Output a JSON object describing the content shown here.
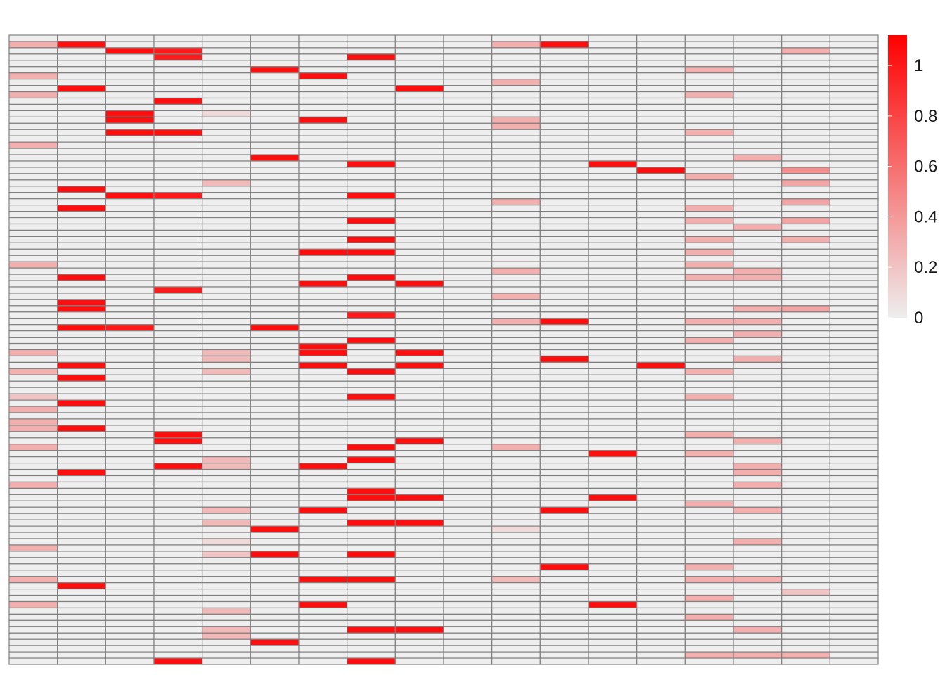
{
  "chart_data": {
    "type": "heatmap",
    "n_cols": 18,
    "n_rows": 100,
    "value_range": [
      0,
      1.12
    ],
    "default_value": 0,
    "color_low": "#eeeeee",
    "color_high": "#ff0000",
    "cell_border_color": "#808080",
    "legend": {
      "position": "right",
      "ticks": [
        {
          "value": 0,
          "label": "0"
        },
        {
          "value": 0.2,
          "label": "0.2"
        },
        {
          "value": 0.4,
          "label": "0.4"
        },
        {
          "value": 0.6,
          "label": "0.6"
        },
        {
          "value": 0.8,
          "label": "0.8"
        },
        {
          "value": 1,
          "label": "1"
        }
      ]
    },
    "cells": [
      [
        1,
        0,
        0.3
      ],
      [
        6,
        0,
        0.3
      ],
      [
        9,
        0,
        0.3
      ],
      [
        17,
        0,
        0.3
      ],
      [
        59,
        0,
        0.3
      ],
      [
        61,
        0,
        0.3
      ],
      [
        62,
        0,
        0.3
      ],
      [
        65,
        0,
        0.3
      ],
      [
        71,
        0,
        0.3
      ],
      [
        81,
        0,
        0.3
      ],
      [
        86,
        0,
        0.3
      ],
      [
        90,
        0,
        0.3
      ],
      [
        36,
        0,
        0.3
      ],
      [
        50,
        0,
        0.3
      ],
      [
        53,
        0,
        0.3
      ],
      [
        57,
        0,
        0.2
      ],
      [
        1,
        1,
        1.05
      ],
      [
        8,
        1,
        1.05
      ],
      [
        24,
        1,
        1.05
      ],
      [
        27,
        1,
        1.05
      ],
      [
        38,
        1,
        1.05
      ],
      [
        42,
        1,
        1.05
      ],
      [
        43,
        1,
        1.05
      ],
      [
        46,
        1,
        1.05
      ],
      [
        52,
        1,
        1.05
      ],
      [
        54,
        1,
        1.05
      ],
      [
        58,
        1,
        1.05
      ],
      [
        62,
        1,
        1.05
      ],
      [
        69,
        1,
        1.05
      ],
      [
        87,
        1,
        1.05
      ],
      [
        2,
        2,
        1.05
      ],
      [
        12,
        2,
        1.05
      ],
      [
        13,
        2,
        1.05
      ],
      [
        15,
        2,
        1.05
      ],
      [
        25,
        2,
        1.05
      ],
      [
        46,
        2,
        1.0
      ],
      [
        2,
        3,
        1.0
      ],
      [
        3,
        3,
        1.0
      ],
      [
        10,
        3,
        1.05
      ],
      [
        15,
        3,
        1.05
      ],
      [
        25,
        3,
        1.0
      ],
      [
        40,
        3,
        1.0
      ],
      [
        63,
        3,
        1.05
      ],
      [
        64,
        3,
        1.05
      ],
      [
        68,
        3,
        1.05
      ],
      [
        99,
        3,
        1.05
      ],
      [
        12,
        4,
        0.1
      ],
      [
        23,
        4,
        0.25
      ],
      [
        50,
        4,
        0.25
      ],
      [
        51,
        4,
        0.25
      ],
      [
        53,
        4,
        0.25
      ],
      [
        67,
        4,
        0.25
      ],
      [
        68,
        4,
        0.25
      ],
      [
        75,
        4,
        0.25
      ],
      [
        77,
        4,
        0.25
      ],
      [
        80,
        4,
        0.1
      ],
      [
        82,
        4,
        0.2
      ],
      [
        91,
        4,
        0.25
      ],
      [
        94,
        4,
        0.25
      ],
      [
        95,
        4,
        0.25
      ],
      [
        5,
        5,
        1.05
      ],
      [
        19,
        5,
        1.05
      ],
      [
        46,
        5,
        1.05
      ],
      [
        78,
        5,
        1.05
      ],
      [
        82,
        5,
        1.05
      ],
      [
        96,
        5,
        1.05
      ],
      [
        6,
        6,
        1.05
      ],
      [
        13,
        6,
        1.05
      ],
      [
        34,
        6,
        1.05
      ],
      [
        39,
        6,
        1.05
      ],
      [
        49,
        6,
        1.05
      ],
      [
        50,
        6,
        1.05
      ],
      [
        52,
        6,
        1.05
      ],
      [
        68,
        6,
        1.05
      ],
      [
        75,
        6,
        1.05
      ],
      [
        86,
        6,
        1.05
      ],
      [
        90,
        6,
        1.05
      ],
      [
        3,
        7,
        1.05
      ],
      [
        20,
        7,
        1.05
      ],
      [
        25,
        7,
        1.05
      ],
      [
        29,
        7,
        1.05
      ],
      [
        32,
        7,
        1.05
      ],
      [
        34,
        7,
        1.05
      ],
      [
        38,
        7,
        1.05
      ],
      [
        44,
        7,
        1.0
      ],
      [
        48,
        7,
        1.05
      ],
      [
        53,
        7,
        1.05
      ],
      [
        57,
        7,
        1.05
      ],
      [
        65,
        7,
        1.05
      ],
      [
        67,
        7,
        1.05
      ],
      [
        72,
        7,
        1.05
      ],
      [
        73,
        7,
        1.05
      ],
      [
        77,
        7,
        1.05
      ],
      [
        82,
        7,
        1.05
      ],
      [
        86,
        7,
        1.05
      ],
      [
        94,
        7,
        1.05
      ],
      [
        99,
        7,
        1.05
      ],
      [
        8,
        8,
        1.05
      ],
      [
        39,
        8,
        1.05
      ],
      [
        50,
        8,
        1.05
      ],
      [
        52,
        8,
        1.05
      ],
      [
        64,
        8,
        1.05
      ],
      [
        73,
        8,
        1.05
      ],
      [
        77,
        8,
        1.05
      ],
      [
        94,
        8,
        1.05
      ],
      [
        1,
        10,
        0.3
      ],
      [
        7,
        10,
        0.3
      ],
      [
        13,
        10,
        0.3
      ],
      [
        14,
        10,
        0.3
      ],
      [
        26,
        10,
        0.3
      ],
      [
        37,
        10,
        0.3
      ],
      [
        41,
        10,
        0.3
      ],
      [
        45,
        10,
        0.3
      ],
      [
        65,
        10,
        0.3
      ],
      [
        78,
        10,
        0.1
      ],
      [
        86,
        10,
        0.25
      ],
      [
        1,
        11,
        1.05
      ],
      [
        45,
        11,
        1.05
      ],
      [
        51,
        11,
        1.05
      ],
      [
        75,
        11,
        1.05
      ],
      [
        84,
        11,
        1.05
      ],
      [
        20,
        12,
        1.05
      ],
      [
        66,
        12,
        1.05
      ],
      [
        73,
        12,
        1.05
      ],
      [
        90,
        12,
        1.05
      ],
      [
        21,
        13,
        1.05
      ],
      [
        52,
        13,
        1.05
      ],
      [
        5,
        14,
        0.3
      ],
      [
        9,
        14,
        0.3
      ],
      [
        15,
        14,
        0.3
      ],
      [
        22,
        14,
        0.3
      ],
      [
        27,
        14,
        0.3
      ],
      [
        29,
        14,
        0.3
      ],
      [
        32,
        14,
        0.3
      ],
      [
        34,
        14,
        0.3
      ],
      [
        36,
        14,
        0.3
      ],
      [
        38,
        14,
        0.3
      ],
      [
        45,
        14,
        0.3
      ],
      [
        48,
        14,
        0.3
      ],
      [
        53,
        14,
        0.3
      ],
      [
        57,
        14,
        0.3
      ],
      [
        63,
        14,
        0.3
      ],
      [
        66,
        14,
        0.3
      ],
      [
        74,
        14,
        0.3
      ],
      [
        84,
        14,
        0.3
      ],
      [
        86,
        14,
        0.3
      ],
      [
        89,
        14,
        0.3
      ],
      [
        92,
        14,
        0.3
      ],
      [
        98,
        14,
        0.3
      ],
      [
        19,
        15,
        0.3
      ],
      [
        30,
        15,
        0.3
      ],
      [
        37,
        15,
        0.3
      ],
      [
        38,
        15,
        0.3
      ],
      [
        43,
        15,
        0.3
      ],
      [
        45,
        15,
        0.3
      ],
      [
        47,
        15,
        0.3
      ],
      [
        51,
        15,
        0.3
      ],
      [
        64,
        15,
        0.3
      ],
      [
        68,
        15,
        0.3
      ],
      [
        69,
        15,
        0.3
      ],
      [
        71,
        15,
        0.3
      ],
      [
        75,
        15,
        0.3
      ],
      [
        80,
        15,
        0.3
      ],
      [
        86,
        15,
        0.3
      ],
      [
        94,
        15,
        0.3
      ],
      [
        98,
        15,
        0.3
      ],
      [
        2,
        16,
        0.3
      ],
      [
        21,
        16,
        0.45
      ],
      [
        23,
        16,
        0.35
      ],
      [
        26,
        16,
        0.35
      ],
      [
        29,
        16,
        0.35
      ],
      [
        32,
        16,
        0.3
      ],
      [
        43,
        16,
        0.35
      ],
      [
        88,
        16,
        0.2
      ],
      [
        98,
        16,
        0.3
      ]
    ]
  }
}
